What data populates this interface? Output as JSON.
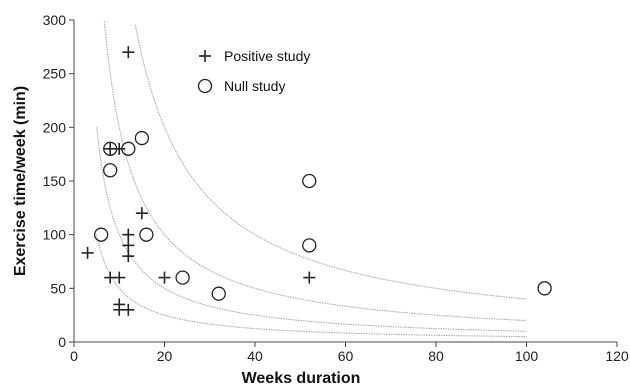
{
  "chart_data": {
    "type": "scatter",
    "title": "",
    "xlabel": "Weeks duration",
    "ylabel": "Exercise time/week (min)",
    "xlim": [
      0,
      120
    ],
    "ylim": [
      0,
      300
    ],
    "x_ticks": [
      0,
      20,
      40,
      60,
      80,
      100,
      120
    ],
    "y_ticks": [
      0,
      50,
      100,
      150,
      200,
      250,
      300
    ],
    "legend_position": "top-center",
    "grid": false,
    "series": [
      {
        "name": "Positive study",
        "marker": "plus",
        "points": [
          {
            "x": 3,
            "y": 83
          },
          {
            "x": 8,
            "y": 60
          },
          {
            "x": 8,
            "y": 180
          },
          {
            "x": 10,
            "y": 60
          },
          {
            "x": 10,
            "y": 35
          },
          {
            "x": 10,
            "y": 30
          },
          {
            "x": 10,
            "y": 180
          },
          {
            "x": 12,
            "y": 30
          },
          {
            "x": 12,
            "y": 270
          },
          {
            "x": 12,
            "y": 100
          },
          {
            "x": 12,
            "y": 90
          },
          {
            "x": 12,
            "y": 80
          },
          {
            "x": 15,
            "y": 120
          },
          {
            "x": 20,
            "y": 60
          },
          {
            "x": 52,
            "y": 60
          }
        ]
      },
      {
        "name": "Null study",
        "marker": "circle",
        "points": [
          {
            "x": 6,
            "y": 100
          },
          {
            "x": 8,
            "y": 160
          },
          {
            "x": 8,
            "y": 180
          },
          {
            "x": 12,
            "y": 180
          },
          {
            "x": 15,
            "y": 190
          },
          {
            "x": 16,
            "y": 100
          },
          {
            "x": 24,
            "y": 60
          },
          {
            "x": 32,
            "y": 45
          },
          {
            "x": 52,
            "y": 150
          },
          {
            "x": 52,
            "y": 90
          },
          {
            "x": 104,
            "y": 50
          }
        ]
      }
    ],
    "reference_curves": [
      {
        "constant": 4000,
        "x_range": [
          13,
          100
        ]
      },
      {
        "constant": 2000,
        "x_range": [
          6.7,
          100
        ]
      },
      {
        "constant": 1000,
        "x_range": [
          5,
          100
        ]
      },
      {
        "constant": 500,
        "x_range": [
          5,
          100
        ]
      }
    ],
    "colors": {
      "axis": "#444444",
      "marker": "#222222",
      "curve": "#aaaaaa",
      "text": "#111111"
    }
  }
}
